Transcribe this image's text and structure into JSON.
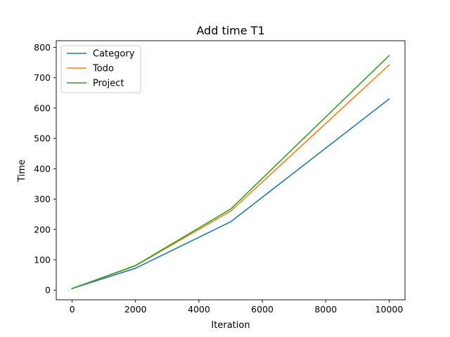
{
  "chart_data": {
    "type": "line",
    "title": "Add time T1",
    "xlabel": "Iteration",
    "ylabel": "Time",
    "x": [
      0,
      2000,
      5000,
      10000
    ],
    "xlim": [
      -500,
      10500
    ],
    "ylim": [
      -32,
      822
    ],
    "xticks": [
      0,
      2000,
      4000,
      6000,
      8000,
      10000
    ],
    "xtick_labels": [
      "0",
      "2000",
      "4000",
      "6000",
      "8000",
      "10000"
    ],
    "yticks": [
      0,
      100,
      200,
      300,
      400,
      500,
      600,
      700,
      800
    ],
    "ytick_labels": [
      "0",
      "100",
      "200",
      "300",
      "400",
      "500",
      "600",
      "700",
      "800"
    ],
    "grid": false,
    "legend_position": "top-left",
    "series": [
      {
        "name": "Category",
        "color": "#1f77b4",
        "values": [
          5,
          72,
          225,
          630
        ]
      },
      {
        "name": "Todo",
        "color": "#ff7f0e",
        "values": [
          5,
          80,
          260,
          742
        ]
      },
      {
        "name": "Project",
        "color": "#2ca02c",
        "values": [
          5,
          81,
          267,
          773
        ]
      }
    ]
  }
}
